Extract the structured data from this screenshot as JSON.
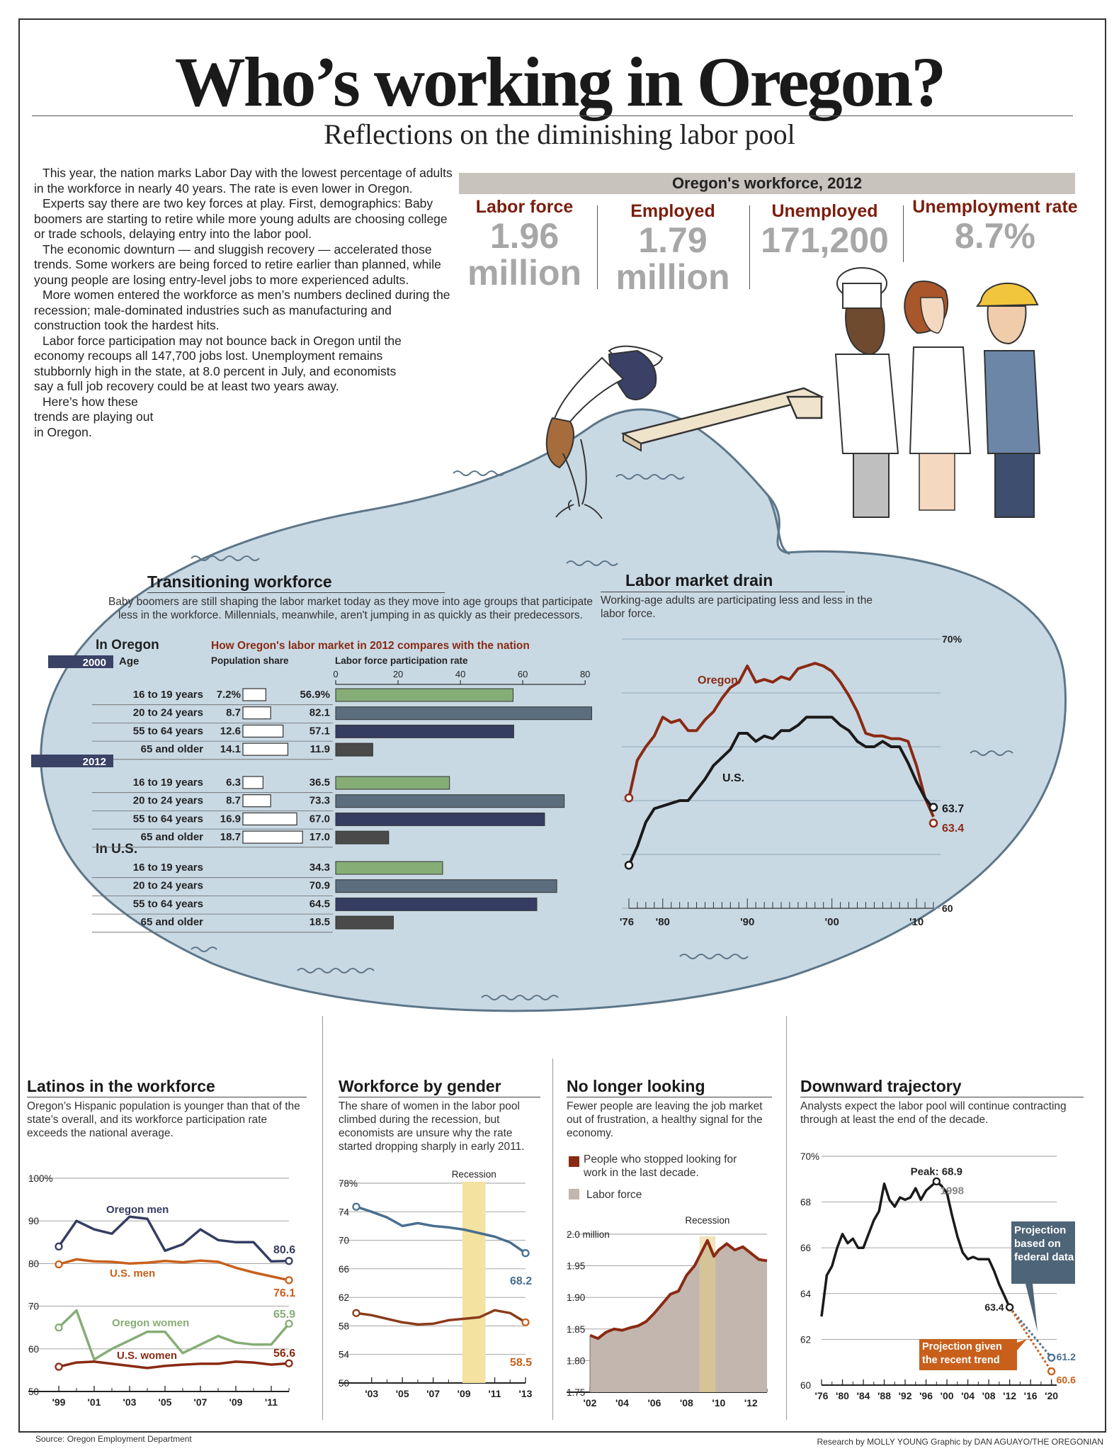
{
  "header": {
    "title": "Who’s working in Oregon?",
    "subtitle": "Reflections on the diminishing labor pool"
  },
  "intro": [
    "This year, the nation marks Labor Day with the lowest percentage of adults in the workforce in nearly 40 years. The rate is even lower in Oregon.",
    "Experts say there are two key forces at play. First, demographics: Baby boomers are starting to retire while more young adults are choosing college or trade schools, delaying entry into the labor pool.",
    "The economic downturn — and sluggish recovery — accelerated those trends. Some workers are being forced to retire earlier than planned, while young people are losing entry-level jobs to more experienced adults.",
    "More women entered the workforce as men’s numbers declined during the recession; male-dominated industries such as manufacturing and construction took the hardest hits.",
    "Labor force participation may not bounce back in Oregon until the economy recoups all 147,700 jobs lost. Unemployment remains stubbornly high in the state, at 8.0 percent in July, and economists say a full job recovery could be at least two years away.",
    "Here’s how these trends are playing out in Oregon."
  ],
  "stats": {
    "title": "Oregon's workforce, 2012",
    "items": [
      {
        "label": "Labor force",
        "value": "1.96",
        "unit": "million"
      },
      {
        "label": "Employed",
        "value": "1.79",
        "unit": "million"
      },
      {
        "label": "Unemployed",
        "value": "171,200",
        "unit": ""
      },
      {
        "label": "Unemployment rate",
        "value": "8.7%",
        "unit": ""
      }
    ]
  },
  "transition": {
    "title": "Transitioning workforce",
    "desc": "Baby boomers are still shaping the labor market today as they move into age groups that participate less in the workforce. Millennials, meanwhile, aren't jumping in as quickly as their predecessors.",
    "in_oregon": "In Oregon",
    "subtitle": "How Oregon's labor market in 2012 compares with the nation",
    "age_label": "Age",
    "pop_label": "Population share",
    "lfp_label": "Labor force participation rate",
    "in_us": "In U.S."
  },
  "drain": {
    "title": "Labor market drain",
    "desc": "Working-age adults are participating less and less in the labor force."
  },
  "latinos": {
    "title": "Latinos in the workforce",
    "desc": "Oregon’s Hispanic population is younger than that of the state’s overall, and its workforce participation rate exceeds the national average."
  },
  "gender": {
    "title": "Workforce by gender",
    "desc": "The share of women in the labor pool climbed during the recession, but economists are unsure why the rate started dropping sharply in early 2011.",
    "recession": "Recession"
  },
  "looking": {
    "title": "No longer looking",
    "desc": "Fewer people are leaving the job market out of frustration, a healthy signal for the economy.",
    "legend1": "People who stopped looking for work in the last decade.",
    "legend2": "Labor force",
    "recession": "Recession"
  },
  "trajectory": {
    "title": "Downward trajectory",
    "desc": "Analysts expect the labor pool will continue contracting through at least the end of the decade.",
    "peak": "Peak: 68.9",
    "peak_year": "1998",
    "proj_fed": "Projection based on federal data",
    "proj_trend": "Projection given the recent trend"
  },
  "footer": {
    "source": "Source: Oregon Employment Department",
    "credit": "Research by MOLLY YOUNG Graphic by DAN AGUAYO/THE OREGONIAN"
  },
  "colors": {
    "oregon": "#8a2a14",
    "us": "#1a1a1a",
    "pool": "#c9d9e4",
    "green": "#86ad76",
    "slate": "#5c6e7e",
    "navy": "#363d62",
    "charcoal": "#4a4a4a",
    "orange": "#c8601c",
    "blue_line": "#4a6f8f",
    "recession": "#f3e2a0",
    "statred": "#7b1e0e"
  },
  "chart_data": [
    {
      "type": "bar",
      "id": "transitioning",
      "categories": [
        "16 to 19 years",
        "20 to 24 years",
        "55 to 64 years",
        "65 and older"
      ],
      "groups": [
        {
          "name": "2000",
          "region": "In Oregon",
          "population_share": [
            "7.2%",
            "8.7",
            "12.6",
            "14.1"
          ],
          "participation": [
            "56.9%",
            "82.1",
            "57.1",
            "11.9"
          ]
        },
        {
          "name": "2012",
          "region": "In Oregon",
          "population_share": [
            "6.3",
            "8.7",
            "16.9",
            "18.7"
          ],
          "participation": [
            "36.5",
            "73.3",
            "67.0",
            "17.0"
          ]
        },
        {
          "name": "",
          "region": "In U.S.",
          "population_share": [],
          "participation": [
            "34.3",
            "70.9",
            "64.5",
            "18.5"
          ]
        }
      ],
      "xticks": [
        "0",
        "20",
        "40",
        "60",
        "80"
      ],
      "xlim": [
        0,
        82
      ]
    },
    {
      "type": "line",
      "id": "drain",
      "ylim": [
        60,
        70
      ],
      "xlim": [
        1976,
        2012
      ],
      "yticks": [
        "60",
        "70%"
      ],
      "xticks": [
        "'76",
        "'80",
        "'90",
        "'00",
        "'10"
      ],
      "series": [
        {
          "name": "Oregon",
          "end_label": "63.4",
          "x": [
            1976,
            1977,
            1978,
            1979,
            1980,
            1981,
            1982,
            1983,
            1984,
            1985,
            1986,
            1987,
            1988,
            1989,
            1990,
            1991,
            1992,
            1993,
            1994,
            1995,
            1996,
            1997,
            1998,
            1999,
            2000,
            2001,
            2002,
            2003,
            2004,
            2005,
            2006,
            2007,
            2008,
            2009,
            2010,
            2011,
            2012
          ],
          "y": [
            64.1,
            65.5,
            66.0,
            66.4,
            67.1,
            66.9,
            67.0,
            66.6,
            66.6,
            67.0,
            67.3,
            67.8,
            68.2,
            68.4,
            69.0,
            68.4,
            68.5,
            68.4,
            68.6,
            68.5,
            68.9,
            69.0,
            69.1,
            69.0,
            68.8,
            68.4,
            67.9,
            67.3,
            66.5,
            66.4,
            66.4,
            66.3,
            66.3,
            66.2,
            65.3,
            64.1,
            63.4
          ]
        },
        {
          "name": "U.S.",
          "end_label": "63.7",
          "x": [
            1976,
            1977,
            1978,
            1979,
            1980,
            1981,
            1982,
            1983,
            1984,
            1985,
            1986,
            1987,
            1988,
            1989,
            1990,
            1991,
            1992,
            1993,
            1994,
            1995,
            1996,
            1997,
            1998,
            1999,
            2000,
            2001,
            2002,
            2003,
            2004,
            2005,
            2006,
            2007,
            2008,
            2009,
            2010,
            2011,
            2012
          ],
          "y": [
            61.6,
            62.3,
            63.2,
            63.7,
            63.8,
            63.9,
            64.0,
            64.0,
            64.4,
            64.8,
            65.3,
            65.6,
            65.9,
            66.5,
            66.5,
            66.2,
            66.4,
            66.3,
            66.6,
            66.6,
            66.8,
            67.1,
            67.1,
            67.1,
            67.1,
            66.8,
            66.6,
            66.2,
            66.0,
            66.0,
            66.2,
            66.0,
            66.0,
            65.4,
            64.7,
            64.1,
            63.7
          ]
        }
      ]
    },
    {
      "type": "line",
      "id": "latinos",
      "ylim": [
        50,
        100
      ],
      "yticks": [
        "50",
        "60",
        "70",
        "80",
        "90",
        "100%"
      ],
      "xticks": [
        "'99",
        "'01",
        "'03",
        "'05",
        "'07",
        "'09",
        "'11"
      ],
      "series": [
        {
          "name": "Oregon men",
          "end_label": "80.6",
          "x": [
            1999,
            2000,
            2001,
            2002,
            2003,
            2004,
            2005,
            2006,
            2007,
            2008,
            2009,
            2010,
            2011,
            2012
          ],
          "y": [
            84,
            90,
            88,
            87,
            91,
            90.5,
            83,
            84.5,
            88,
            85.5,
            85,
            85,
            80.5,
            80.6
          ]
        },
        {
          "name": "U.S. men",
          "end_label": "76.1",
          "x": [
            1999,
            2000,
            2001,
            2002,
            2003,
            2004,
            2005,
            2006,
            2007,
            2008,
            2009,
            2010,
            2011,
            2012
          ],
          "y": [
            79.8,
            81,
            80.5,
            80.4,
            80,
            80.2,
            80.6,
            80.3,
            80.7,
            80.4,
            79,
            77.9,
            77,
            76.1
          ]
        },
        {
          "name": "Oregon women",
          "end_label": "65.9",
          "x": [
            1999,
            2000,
            2001,
            2002,
            2003,
            2004,
            2005,
            2006,
            2007,
            2008,
            2009,
            2010,
            2011,
            2012
          ],
          "y": [
            65,
            69,
            57.5,
            60,
            62,
            64,
            64,
            59,
            61,
            63,
            61.5,
            61,
            61,
            65.9
          ]
        },
        {
          "name": "U.S. women",
          "end_label": "56.6",
          "x": [
            1999,
            2000,
            2001,
            2002,
            2003,
            2004,
            2005,
            2006,
            2007,
            2008,
            2009,
            2010,
            2011,
            2012
          ],
          "y": [
            55.8,
            56.8,
            57,
            56.5,
            56,
            55.5,
            56,
            56.3,
            56.5,
            56.5,
            57,
            56.8,
            56.3,
            56.6
          ]
        }
      ]
    },
    {
      "type": "line",
      "id": "gender",
      "ylim": [
        50,
        78
      ],
      "yticks": [
        "50",
        "54",
        "58",
        "62",
        "66",
        "70",
        "74",
        "78%"
      ],
      "xticks": [
        "'03",
        "'05",
        "'07",
        "'09",
        "'11",
        "'13"
      ],
      "recession": [
        2008.9,
        2010.4
      ],
      "series": [
        {
          "name": "",
          "end_label": "68.2",
          "x": [
            2002,
            2003,
            2004,
            2005,
            2006,
            2007,
            2008,
            2009,
            2010,
            2011,
            2012,
            2013
          ],
          "y": [
            74.7,
            74,
            73.2,
            72,
            72.4,
            72,
            71.8,
            71.5,
            71,
            70.5,
            69.7,
            68.2
          ]
        },
        {
          "name": "",
          "end_label": "58.5",
          "x": [
            2002,
            2003,
            2004,
            2005,
            2006,
            2007,
            2008,
            2009,
            2010,
            2011,
            2012,
            2013
          ],
          "y": [
            59.8,
            59.5,
            59,
            58.5,
            58.2,
            58.3,
            58.8,
            59,
            59.2,
            60.2,
            59.8,
            58.5
          ]
        }
      ]
    },
    {
      "type": "area",
      "id": "looking",
      "ylim": [
        1.75,
        2.0
      ],
      "yticks": [
        "1.75",
        "1.80",
        "1.85",
        "1.90",
        "1.95",
        "2.0 million"
      ],
      "xticks": [
        "'02",
        "'04",
        "'06",
        "'08",
        "'10",
        "'12"
      ],
      "recession": [
        2008.8,
        2009.8
      ],
      "series": [
        {
          "name": "People who stopped looking for work in the last decade.",
          "x": [
            2002,
            2002.5,
            2003,
            2003.5,
            2004,
            2004.5,
            2005,
            2005.5,
            2006,
            2006.5,
            2007,
            2007.5,
            2008,
            2008.5,
            2009,
            2009.3,
            2009.7,
            2010,
            2010.5,
            2011,
            2011.5,
            2012,
            2012.5,
            2013
          ],
          "y": [
            1.84,
            1.835,
            1.845,
            1.85,
            1.848,
            1.852,
            1.855,
            1.862,
            1.875,
            1.89,
            1.905,
            1.91,
            1.935,
            1.95,
            1.975,
            1.99,
            1.965,
            1.975,
            1.985,
            1.975,
            1.98,
            1.97,
            1.96,
            1.958
          ]
        }
      ]
    },
    {
      "type": "line",
      "id": "trajectory",
      "ylim": [
        60,
        70
      ],
      "yticks": [
        "60",
        "62",
        "64",
        "66",
        "68",
        "70%"
      ],
      "xticks": [
        "'76",
        "'80",
        "'84",
        "'88",
        "'92",
        "'96",
        "'00",
        "'04",
        "'08",
        "'12",
        "'16",
        "'20"
      ],
      "series": [
        {
          "name": "",
          "end_label": "63.4",
          "x": [
            1976,
            1977,
            1978,
            1979,
            1980,
            1981,
            1982,
            1983,
            1984,
            1985,
            1986,
            1987,
            1988,
            1989,
            1990,
            1991,
            1992,
            1993,
            1994,
            1995,
            1996,
            1997,
            1998,
            1999,
            2000,
            2001,
            2002,
            2003,
            2004,
            2005,
            2006,
            2007,
            2008,
            2009,
            2010,
            2011,
            2012
          ],
          "y": [
            63,
            64.8,
            65.2,
            66,
            66.6,
            66.2,
            66.4,
            66,
            66,
            66.6,
            67.2,
            67.6,
            68.8,
            68.1,
            67.8,
            68.2,
            68.1,
            68.2,
            68.6,
            68.1,
            68.5,
            68.7,
            68.9,
            68.7,
            68.4,
            67.4,
            66.5,
            65.8,
            65.5,
            65.6,
            65.5,
            65.5,
            65.5,
            65,
            64.4,
            63.9,
            63.4
          ]
        },
        {
          "name": "Projection based on federal data",
          "end_label": "61.2",
          "x": [
            2012,
            2020
          ],
          "y": [
            63.4,
            61.2
          ]
        },
        {
          "name": "Projection given the recent trend",
          "end_label": "60.6",
          "x": [
            2012,
            2020
          ],
          "y": [
            63.4,
            60.6
          ]
        }
      ]
    }
  ]
}
